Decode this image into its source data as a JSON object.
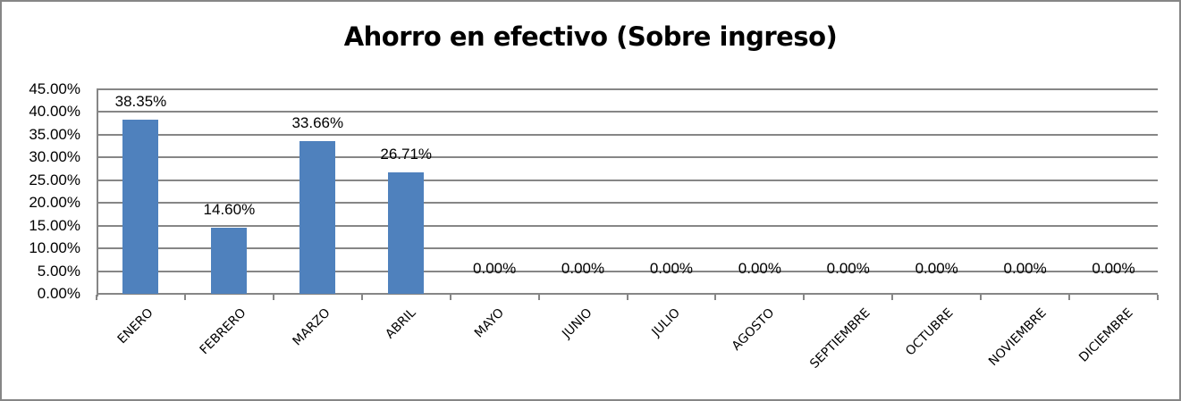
{
  "chart_data": {
    "type": "bar",
    "title": "Ahorro en efectivo (Sobre ingreso)",
    "xlabel": "",
    "ylabel": "",
    "categories": [
      "ENERO",
      "FEBRERO",
      "MARZO",
      "ABRIL",
      "MAYO",
      "JUNIO",
      "JULIO",
      "AGOSTO",
      "SEPTIEMBRE",
      "OCTUBRE",
      "NOVIEMBRE",
      "DICIEMBRE"
    ],
    "values": [
      38.35,
      14.6,
      33.66,
      26.71,
      0,
      0,
      0,
      0,
      0,
      0,
      0,
      0
    ],
    "data_labels": [
      "38.35%",
      "14.60%",
      "33.66%",
      "26.71%",
      "0.00%",
      "0.00%",
      "0.00%",
      "0.00%",
      "0.00%",
      "0.00%",
      "0.00%",
      "0.00%"
    ],
    "ylim": [
      0,
      45
    ],
    "yticks": [
      "45.00%",
      "40.00%",
      "35.00%",
      "30.00%",
      "25.00%",
      "20.00%",
      "15.00%",
      "10.00%",
      "5.00%",
      "0.00%"
    ],
    "grid": true,
    "legend": "none",
    "bar_color": "#4f81bd"
  }
}
